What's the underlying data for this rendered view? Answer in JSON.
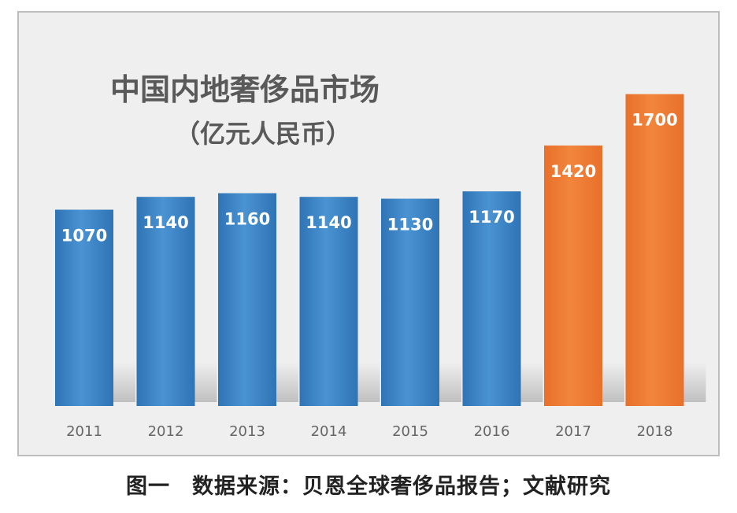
{
  "chart_data": {
    "type": "bar",
    "title": "中国内地奢侈品市场",
    "subtitle": "（亿元人民币）",
    "categories": [
      "2011",
      "2012",
      "2013",
      "2014",
      "2015",
      "2016",
      "2017",
      "2018"
    ],
    "values": [
      1070,
      1140,
      1160,
      1140,
      1130,
      1170,
      1420,
      1700
    ],
    "data_labels": [
      "1070",
      "1140",
      "1160",
      "1140",
      "1130",
      "1170",
      "1420",
      "1700"
    ],
    "bar_colors": [
      "#3d86c6",
      "#3d86c6",
      "#3d86c6",
      "#3d86c6",
      "#3d86c6",
      "#3d86c6",
      "#ee7b33",
      "#ee7b33"
    ],
    "ylim": [
      0,
      1900
    ],
    "grid": false,
    "legend": "none"
  },
  "caption": "图一　数据来源：贝恩全球奢侈品报告；文献研究",
  "colors": {
    "background": "#efefef",
    "blue": "#3d86c6",
    "orange": "#ee7b33",
    "title": "#595959"
  }
}
